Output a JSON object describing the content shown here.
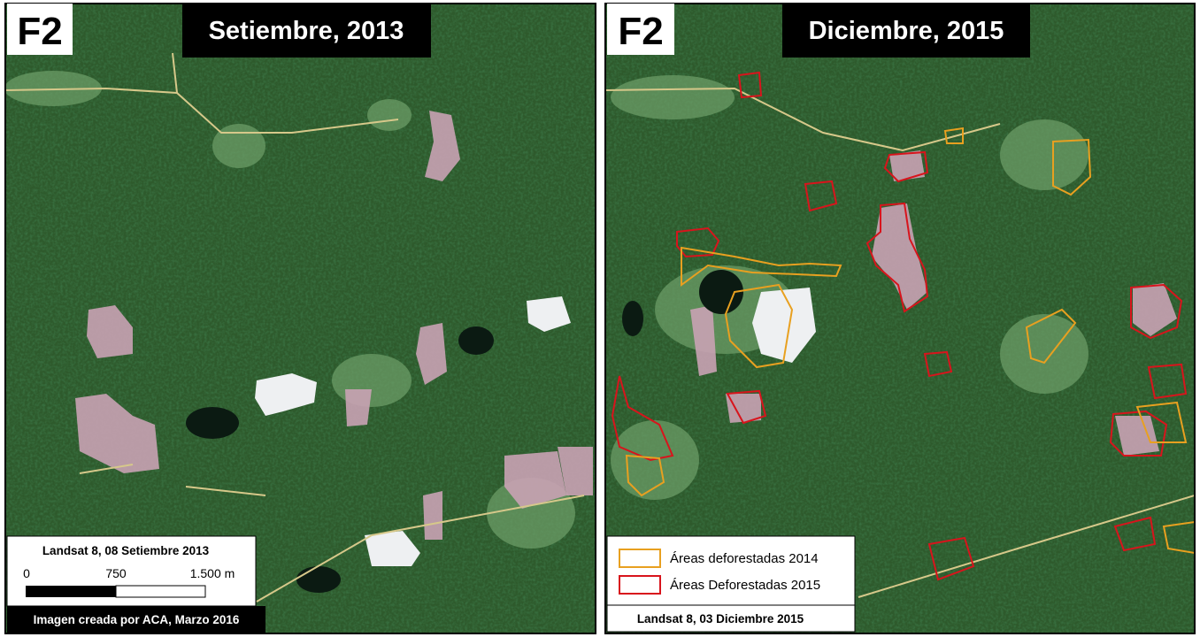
{
  "panels": [
    {
      "label": "F2",
      "title": "Setiembre, 2013",
      "caption": "Landsat 8, 08 Setiembre 2013",
      "scale_labels": [
        "0",
        "750",
        "1.500 m"
      ],
      "credit": "Imagen creada por ACA, Marzo 2016"
    },
    {
      "label": "F2",
      "title": "Diciembre, 2015",
      "caption": "Landsat 8, 03 Diciembre 2015",
      "legend": [
        {
          "label": "Áreas deforestadas 2014",
          "color": "#e8a020",
          "class": "d14"
        },
        {
          "label": "Áreas Deforestadas 2015",
          "color": "#d8141c",
          "class": "d15"
        }
      ]
    }
  ]
}
